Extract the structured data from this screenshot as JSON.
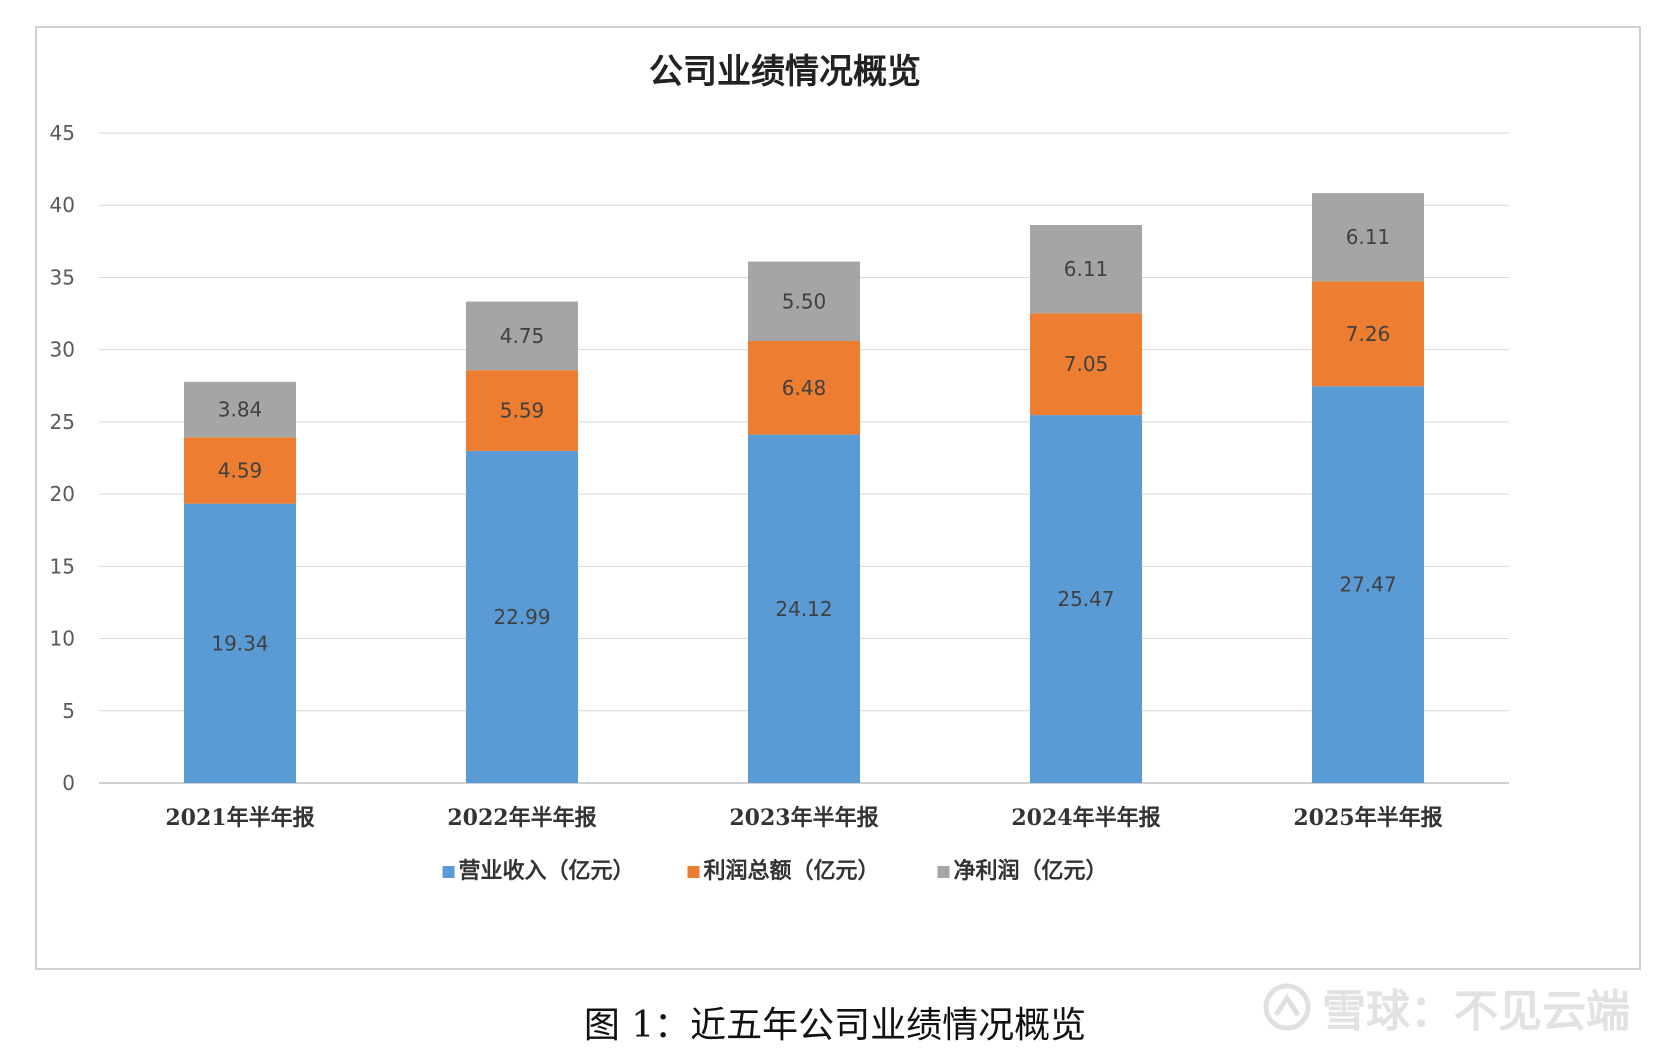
{
  "chart_data": {
    "type": "bar",
    "stacked": true,
    "title": "公司业绩情况概览",
    "categories": [
      "2021年半年报",
      "2022年半年报",
      "2023年半年报",
      "2024年半年报",
      "2025年半年报"
    ],
    "series": [
      {
        "name": "营业收入（亿元）",
        "color": "#5b9bd5",
        "values": [
          19.34,
          22.99,
          24.12,
          25.47,
          27.47
        ]
      },
      {
        "name": "利润总额（亿元）",
        "color": "#ed7d31",
        "values": [
          4.59,
          5.59,
          6.48,
          7.05,
          7.26
        ]
      },
      {
        "name": "净利润（亿元）",
        "color": "#a5a5a5",
        "values": [
          3.84,
          4.75,
          5.5,
          6.11,
          6.11
        ]
      }
    ],
    "ylim": [
      0,
      45
    ],
    "yticks": [
      0,
      5,
      10,
      15,
      20,
      25,
      30,
      35,
      40,
      45
    ],
    "grid": true,
    "legend": "bottom"
  },
  "caption": "图 1：近五年公司业绩情况概览",
  "watermark": {
    "icon": "snowball-logo-icon",
    "text": "雪球：不见云端"
  }
}
